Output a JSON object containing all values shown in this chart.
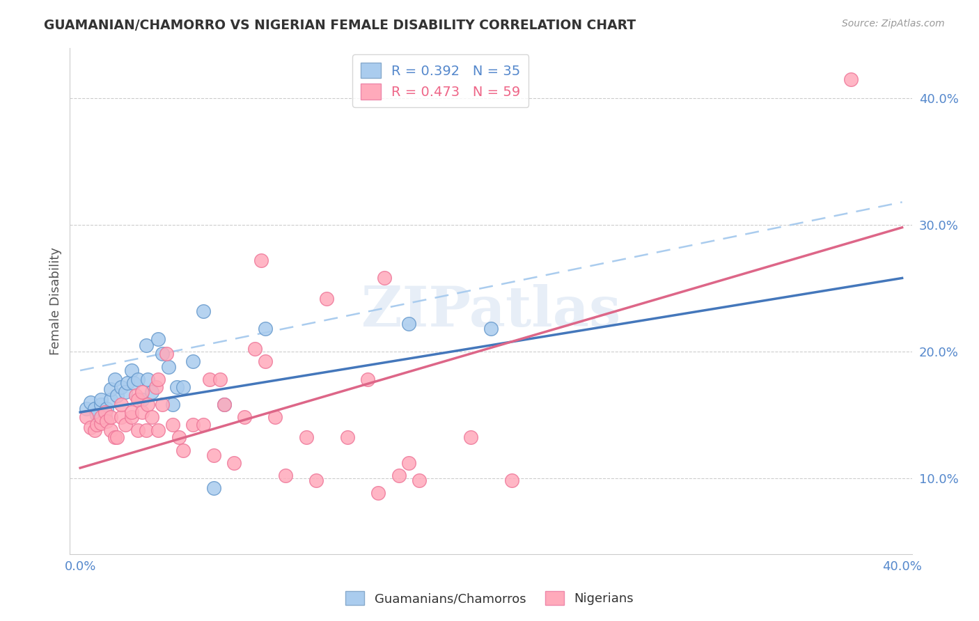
{
  "title": "GUAMANIAN/CHAMORRO VS NIGERIAN FEMALE DISABILITY CORRELATION CHART",
  "source": "Source: ZipAtlas.com",
  "ylabel": "Female Disability",
  "ytick_values": [
    0.1,
    0.2,
    0.3,
    0.4
  ],
  "ytick_labels": [
    "10.0%",
    "20.0%",
    "30.0%",
    "40.0%"
  ],
  "xlim": [
    -0.005,
    0.405
  ],
  "ylim": [
    0.04,
    0.44
  ],
  "watermark": "ZIPatlas",
  "blue_scatter": [
    [
      0.003,
      0.155
    ],
    [
      0.005,
      0.16
    ],
    [
      0.007,
      0.155
    ],
    [
      0.008,
      0.15
    ],
    [
      0.01,
      0.158
    ],
    [
      0.01,
      0.162
    ],
    [
      0.012,
      0.148
    ],
    [
      0.013,
      0.155
    ],
    [
      0.015,
      0.162
    ],
    [
      0.015,
      0.17
    ],
    [
      0.017,
      0.178
    ],
    [
      0.018,
      0.165
    ],
    [
      0.02,
      0.172
    ],
    [
      0.022,
      0.168
    ],
    [
      0.023,
      0.175
    ],
    [
      0.025,
      0.185
    ],
    [
      0.026,
      0.175
    ],
    [
      0.028,
      0.178
    ],
    [
      0.03,
      0.162
    ],
    [
      0.032,
      0.205
    ],
    [
      0.033,
      0.178
    ],
    [
      0.035,
      0.168
    ],
    [
      0.038,
      0.21
    ],
    [
      0.04,
      0.198
    ],
    [
      0.043,
      0.188
    ],
    [
      0.045,
      0.158
    ],
    [
      0.047,
      0.172
    ],
    [
      0.05,
      0.172
    ],
    [
      0.055,
      0.192
    ],
    [
      0.06,
      0.232
    ],
    [
      0.065,
      0.092
    ],
    [
      0.07,
      0.158
    ],
    [
      0.09,
      0.218
    ],
    [
      0.16,
      0.222
    ],
    [
      0.2,
      0.218
    ]
  ],
  "pink_scatter": [
    [
      0.003,
      0.148
    ],
    [
      0.005,
      0.14
    ],
    [
      0.007,
      0.138
    ],
    [
      0.008,
      0.142
    ],
    [
      0.01,
      0.143
    ],
    [
      0.01,
      0.148
    ],
    [
      0.012,
      0.152
    ],
    [
      0.013,
      0.145
    ],
    [
      0.015,
      0.138
    ],
    [
      0.015,
      0.148
    ],
    [
      0.017,
      0.132
    ],
    [
      0.018,
      0.132
    ],
    [
      0.02,
      0.148
    ],
    [
      0.02,
      0.158
    ],
    [
      0.022,
      0.142
    ],
    [
      0.025,
      0.148
    ],
    [
      0.025,
      0.152
    ],
    [
      0.027,
      0.165
    ],
    [
      0.028,
      0.138
    ],
    [
      0.028,
      0.162
    ],
    [
      0.03,
      0.152
    ],
    [
      0.03,
      0.168
    ],
    [
      0.032,
      0.138
    ],
    [
      0.033,
      0.158
    ],
    [
      0.035,
      0.148
    ],
    [
      0.037,
      0.172
    ],
    [
      0.038,
      0.138
    ],
    [
      0.038,
      0.178
    ],
    [
      0.04,
      0.158
    ],
    [
      0.042,
      0.198
    ],
    [
      0.045,
      0.142
    ],
    [
      0.048,
      0.132
    ],
    [
      0.05,
      0.122
    ],
    [
      0.055,
      0.142
    ],
    [
      0.06,
      0.142
    ],
    [
      0.063,
      0.178
    ],
    [
      0.065,
      0.118
    ],
    [
      0.068,
      0.178
    ],
    [
      0.07,
      0.158
    ],
    [
      0.075,
      0.112
    ],
    [
      0.08,
      0.148
    ],
    [
      0.085,
      0.202
    ],
    [
      0.088,
      0.272
    ],
    [
      0.09,
      0.192
    ],
    [
      0.095,
      0.148
    ],
    [
      0.1,
      0.102
    ],
    [
      0.11,
      0.132
    ],
    [
      0.115,
      0.098
    ],
    [
      0.12,
      0.242
    ],
    [
      0.13,
      0.132
    ],
    [
      0.14,
      0.178
    ],
    [
      0.145,
      0.088
    ],
    [
      0.148,
      0.258
    ],
    [
      0.155,
      0.102
    ],
    [
      0.16,
      0.112
    ],
    [
      0.165,
      0.098
    ],
    [
      0.19,
      0.132
    ],
    [
      0.21,
      0.098
    ],
    [
      0.375,
      0.415
    ]
  ],
  "blue_line": {
    "x0": 0.0,
    "y0": 0.152,
    "x1": 0.4,
    "y1": 0.258
  },
  "pink_line": {
    "x0": 0.0,
    "y0": 0.108,
    "x1": 0.4,
    "y1": 0.298
  },
  "dash_line": {
    "x0": 0.0,
    "y0": 0.185,
    "x1": 0.4,
    "y1": 0.318
  },
  "blue_line_color": "#4477bb",
  "pink_line_color": "#dd6688",
  "blue_dash_color": "#aaccee",
  "background_color": "#ffffff",
  "grid_color": "#cccccc",
  "legend_r1": "R = 0.392   N = 35",
  "legend_r2": "R = 0.473   N = 59",
  "legend_blue_face": "#aaccee",
  "legend_pink_face": "#ffaabb",
  "legend_text_blue": "#5588cc",
  "legend_text_pink": "#ee6688"
}
